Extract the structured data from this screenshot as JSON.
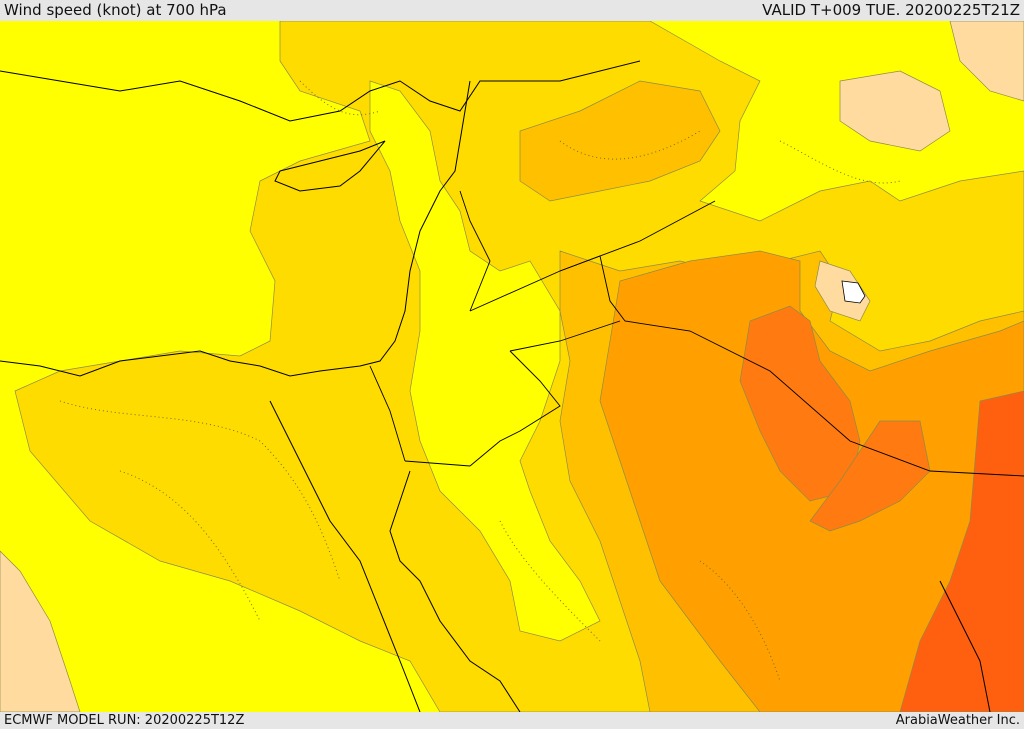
{
  "header": {
    "title": "Wind speed (knot) at 700 hPa",
    "valid": "VALID T+009 TUE. 20200225T21Z"
  },
  "footer": {
    "run": "ECMWF MODEL RUN: 20200225T12Z",
    "credit": "ArabiaWeather Inc."
  },
  "map": {
    "region": "Eastern Mediterranean / Levant",
    "field": "wind speed at 700 hPa",
    "fill_colors": {
      "lightest": "#ffff00",
      "light": "#ffdc00",
      "medium": "#ffc000",
      "orange": "#ffa000",
      "dark_orange": "#ff7a10",
      "darker": "#ff6010",
      "calm": "#ffdba0"
    },
    "coastline_color": "#000000",
    "contour_style": "dotted and solid grey lines"
  }
}
